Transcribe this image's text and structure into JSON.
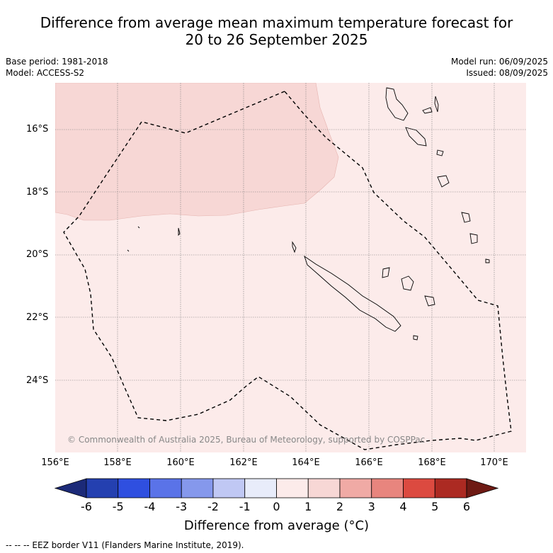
{
  "title": {
    "line1": "Difference from average mean maximum temperature forecast for",
    "line2": "20 to 26 September 2025"
  },
  "meta": {
    "base_period": "Base period: 1981-2018",
    "model": "Model: ACCESS-S2",
    "model_run": "Model run: 06/09/2025",
    "issued": "Issued: 08/09/2025"
  },
  "map": {
    "latitude_labels": [
      "16°S",
      "18°S",
      "20°S",
      "22°S",
      "24°S"
    ],
    "longitude_labels": [
      "156°E",
      "158°E",
      "160°E",
      "162°E",
      "164°E",
      "166°E",
      "168°E",
      "170°E"
    ],
    "copyright": "© Commonwealth of Australia 2025, Bureau of Meteorology, supported by COSPPac",
    "colors": {
      "anomaly_0_to_1": "#fcebea",
      "anomaly_1_to_2": "#f7d7d5",
      "eez_border": "#000000",
      "grid": "#888888"
    }
  },
  "colorbar": {
    "ticks": [
      "-6",
      "-5",
      "-4",
      "-3",
      "-2",
      "-1",
      "0",
      "1",
      "2",
      "3",
      "4",
      "5",
      "6"
    ],
    "colors": [
      "#1c2a78",
      "#2440b0",
      "#2f4fe0",
      "#5a73e8",
      "#8598ec",
      "#c0c8f4",
      "#e8ecfa",
      "#fcebea",
      "#f7d7d5",
      "#f0aaa5",
      "#e8857e",
      "#dc4a40",
      "#ac2a22",
      "#6e1a14"
    ],
    "title": "Difference from average (°C)"
  },
  "footer": "--  --  -- EEZ border V11 (Flanders Marine Institute, 2019)."
}
